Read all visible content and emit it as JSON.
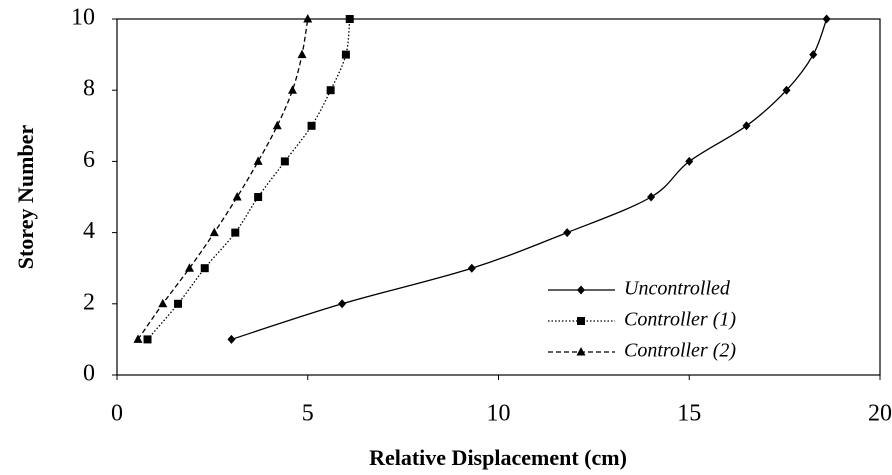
{
  "chart_data": {
    "type": "line",
    "xlabel": "Relative Displacement (cm)",
    "ylabel": "Storey Number",
    "xlim": [
      0,
      20
    ],
    "xticks": [
      0,
      5,
      10,
      15,
      20
    ],
    "ylim": [
      0,
      10
    ],
    "yticks": [
      0,
      2,
      4,
      6,
      8,
      10
    ],
    "legend": "lower right",
    "series": [
      {
        "name": "Uncontrolled",
        "color": "#000000",
        "dash": "solid",
        "marker": "diamond",
        "x": [
          3.0,
          5.9,
          9.3,
          11.8,
          14.0,
          15.0,
          16.5,
          17.55,
          18.25,
          18.6
        ],
        "values": [
          1,
          2,
          3,
          4,
          5,
          6,
          7,
          8,
          9,
          10
        ]
      },
      {
        "name": "Controller (1)",
        "color": "#000000",
        "dash": "dotted",
        "marker": "square",
        "x": [
          0.8,
          1.6,
          2.3,
          3.1,
          3.7,
          4.4,
          5.1,
          5.6,
          6.0,
          6.1
        ],
        "values": [
          1,
          2,
          3,
          4,
          5,
          6,
          7,
          8,
          9,
          10
        ]
      },
      {
        "name": "Controller (2)",
        "color": "#000000",
        "dash": "dashed",
        "marker": "triangle",
        "x": [
          0.55,
          1.2,
          1.9,
          2.55,
          3.15,
          3.7,
          4.2,
          4.6,
          4.85,
          5.0
        ],
        "values": [
          1,
          2,
          3,
          4,
          5,
          6,
          7,
          8,
          9,
          10
        ]
      }
    ]
  }
}
